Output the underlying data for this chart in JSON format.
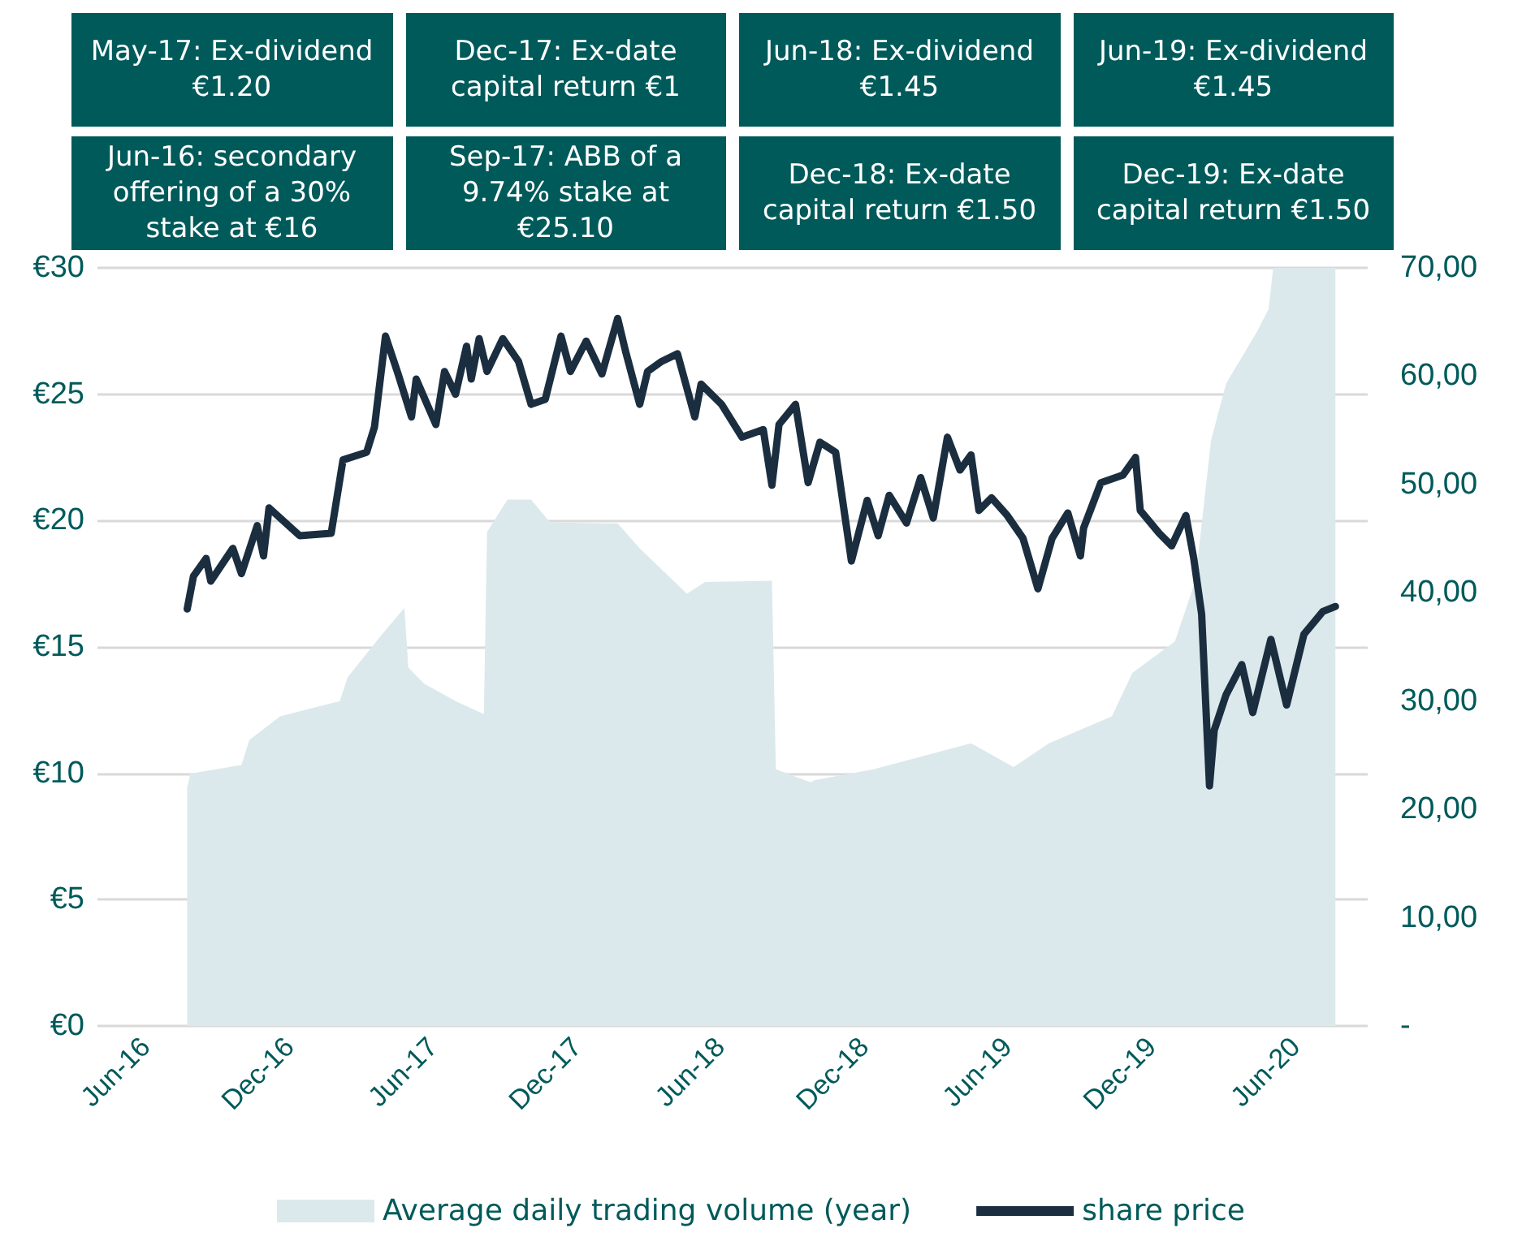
{
  "chart_data": {
    "type": "line",
    "legend": "bottom",
    "grid": "y",
    "line_style": "solid",
    "xlim": [
      "2016-04-01",
      "2020-09-01"
    ],
    "xticks": [
      {
        "value": "2016-06-01",
        "label": "Jun-16"
      },
      {
        "value": "2016-12-01",
        "label": "Dec-16"
      },
      {
        "value": "2017-06-01",
        "label": "Jun-17"
      },
      {
        "value": "2017-12-01",
        "label": "Dec-17"
      },
      {
        "value": "2018-06-01",
        "label": "Jun-18"
      },
      {
        "value": "2018-12-01",
        "label": "Dec-18"
      },
      {
        "value": "2019-06-01",
        "label": "Jun-19"
      },
      {
        "value": "2019-12-01",
        "label": "Dec-19"
      },
      {
        "value": "2020-06-01",
        "label": "Jun-20"
      }
    ],
    "ylim": [
      0,
      30
    ],
    "yticks": [
      {
        "value": 0,
        "label": "€0"
      },
      {
        "value": 5,
        "label": "€5"
      },
      {
        "value": 10,
        "label": "€10"
      },
      {
        "value": 15,
        "label": "€15"
      },
      {
        "value": 20,
        "label": "€20"
      },
      {
        "value": 25,
        "label": "€25"
      },
      {
        "value": 30,
        "label": "€30"
      }
    ],
    "y2lim": [
      0,
      70
    ],
    "y2ticks": [
      {
        "value": 0,
        "label": "-"
      },
      {
        "value": 10,
        "label": "10,00"
      },
      {
        "value": 20,
        "label": "20,00"
      },
      {
        "value": 30,
        "label": "30,00"
      },
      {
        "value": 40,
        "label": "40,00"
      },
      {
        "value": 50,
        "label": "50,00"
      },
      {
        "value": 60,
        "label": "60,00"
      },
      {
        "value": 70,
        "label": "70,00"
      }
    ],
    "annotations": [
      "May-17: Ex-dividend €1.20",
      "Dec-17: Ex-date capital return €1",
      "Jun-18: Ex-dividend €1.45",
      "Jun-19: Ex-dividend €1.45",
      "Jun-16: secondary offering of a 30% stake at €16",
      "Sep-17: ABB of a 9.74% stake at €25.10",
      "Dec-18: Ex-date capital return €1.50",
      "Dec-19: Ex-date capital return €1.50"
    ],
    "series": [
      {
        "name": "Average daily trading volume (year)",
        "type": "area",
        "axis": "y2",
        "color": "#dce9ec",
        "x": [
          "2016-07-24",
          "2016-07-28",
          "2016-10-01",
          "2016-10-11",
          "2016-11-19",
          "2017-02-03",
          "2017-02-13",
          "2017-03-29",
          "2017-04-26",
          "2017-05-01",
          "2017-05-21",
          "2017-06-30",
          "2017-08-05",
          "2017-08-09",
          "2017-09-04",
          "2017-10-04",
          "2017-10-28",
          "2018-01-22",
          "2018-02-19",
          "2018-04-20",
          "2018-05-13",
          "2018-08-06",
          "2018-08-11",
          "2018-09-24",
          "2018-09-30",
          "2018-12-13",
          "2019-04-16",
          "2019-06-09",
          "2019-07-24",
          "2019-10-12",
          "2019-11-07",
          "2019-12-31",
          "2020-01-26",
          "2020-02-15",
          "2020-03-05",
          "2020-04-14",
          "2020-04-28",
          "2020-05-04",
          "2020-07-22"
        ],
        "values": [
          22,
          23.3,
          24.1,
          26.4,
          28.6,
          30,
          32.2,
          36.2,
          38.6,
          33.1,
          31.6,
          30,
          28.8,
          45.6,
          48.6,
          48.6,
          46.5,
          46.4,
          44.1,
          39.9,
          41,
          41.1,
          23.7,
          22.5,
          22.7,
          23.7,
          26.1,
          23.9,
          26.1,
          28.6,
          32.6,
          35.5,
          41.1,
          54.1,
          59.3,
          64.2,
          66.2,
          70,
          70
        ]
      },
      {
        "name": "share price",
        "color": "#1b2e3f",
        "x": [
          "2016-07-24",
          "2016-08-01",
          "2016-08-17",
          "2016-08-23",
          "2016-09-20",
          "2016-10-01",
          "2016-10-21",
          "2016-10-29",
          "2016-11-05",
          "2016-12-14",
          "2017-01-23",
          "2017-02-07",
          "2017-03-09",
          "2017-03-19",
          "2017-04-02",
          "2017-04-18",
          "2017-05-05",
          "2017-05-11",
          "2017-06-05",
          "2017-06-16",
          "2017-06-30",
          "2017-07-14",
          "2017-07-20",
          "2017-07-30",
          "2017-08-09",
          "2017-08-29",
          "2017-09-18",
          "2017-10-04",
          "2017-10-22",
          "2017-11-11",
          "2017-11-23",
          "2017-12-13",
          "2018-01-02",
          "2018-01-22",
          "2018-02-01",
          "2018-02-19",
          "2018-03-01",
          "2018-03-19",
          "2018-04-08",
          "2018-04-30",
          "2018-05-08",
          "2018-06-03",
          "2018-06-29",
          "2018-07-26",
          "2018-08-06",
          "2018-08-15",
          "2018-09-05",
          "2018-09-21",
          "2018-10-06",
          "2018-10-26",
          "2018-11-15",
          "2018-12-05",
          "2018-12-19",
          "2019-01-02",
          "2019-01-24",
          "2019-02-11",
          "2019-02-27",
          "2019-03-17",
          "2019-04-02",
          "2019-04-16",
          "2019-04-26",
          "2019-05-12",
          "2019-06-01",
          "2019-06-21",
          "2019-07-10",
          "2019-07-28",
          "2019-08-17",
          "2019-09-02",
          "2019-09-06",
          "2019-09-28",
          "2019-10-26",
          "2019-11-11",
          "2019-11-17",
          "2019-12-11",
          "2019-12-27",
          "2020-01-14",
          "2020-01-24",
          "2020-02-03",
          "2020-02-13",
          "2020-02-19",
          "2020-03-05",
          "2020-03-25",
          "2020-04-08",
          "2020-05-01",
          "2020-05-21",
          "2020-06-12",
          "2020-07-06",
          "2020-07-22"
        ],
        "values": [
          16.5,
          17.8,
          18.5,
          17.6,
          18.9,
          17.9,
          19.8,
          18.6,
          20.5,
          19.4,
          19.5,
          22.4,
          22.7,
          23.7,
          27.3,
          25.8,
          24.1,
          25.6,
          23.8,
          25.9,
          25,
          26.9,
          25.6,
          27.2,
          25.9,
          27.2,
          26.3,
          24.6,
          24.8,
          27.3,
          25.9,
          27.1,
          25.8,
          28,
          26.7,
          24.6,
          25.9,
          26.3,
          26.6,
          24.1,
          25.4,
          24.6,
          23.3,
          23.6,
          21.4,
          23.8,
          24.6,
          21.5,
          23.1,
          22.7,
          18.4,
          20.8,
          19.4,
          21,
          19.9,
          21.7,
          20.1,
          23.3,
          22,
          22.6,
          20.4,
          20.9,
          20.2,
          19.3,
          17.3,
          19.3,
          20.3,
          18.6,
          19.7,
          21.5,
          21.8,
          22.5,
          20.4,
          19.5,
          19,
          20.2,
          18.5,
          16.3,
          9.5,
          11.7,
          13.1,
          14.3,
          12.4,
          15.3,
          12.7,
          15.5,
          16.4,
          16.6
        ]
      }
    ]
  }
}
